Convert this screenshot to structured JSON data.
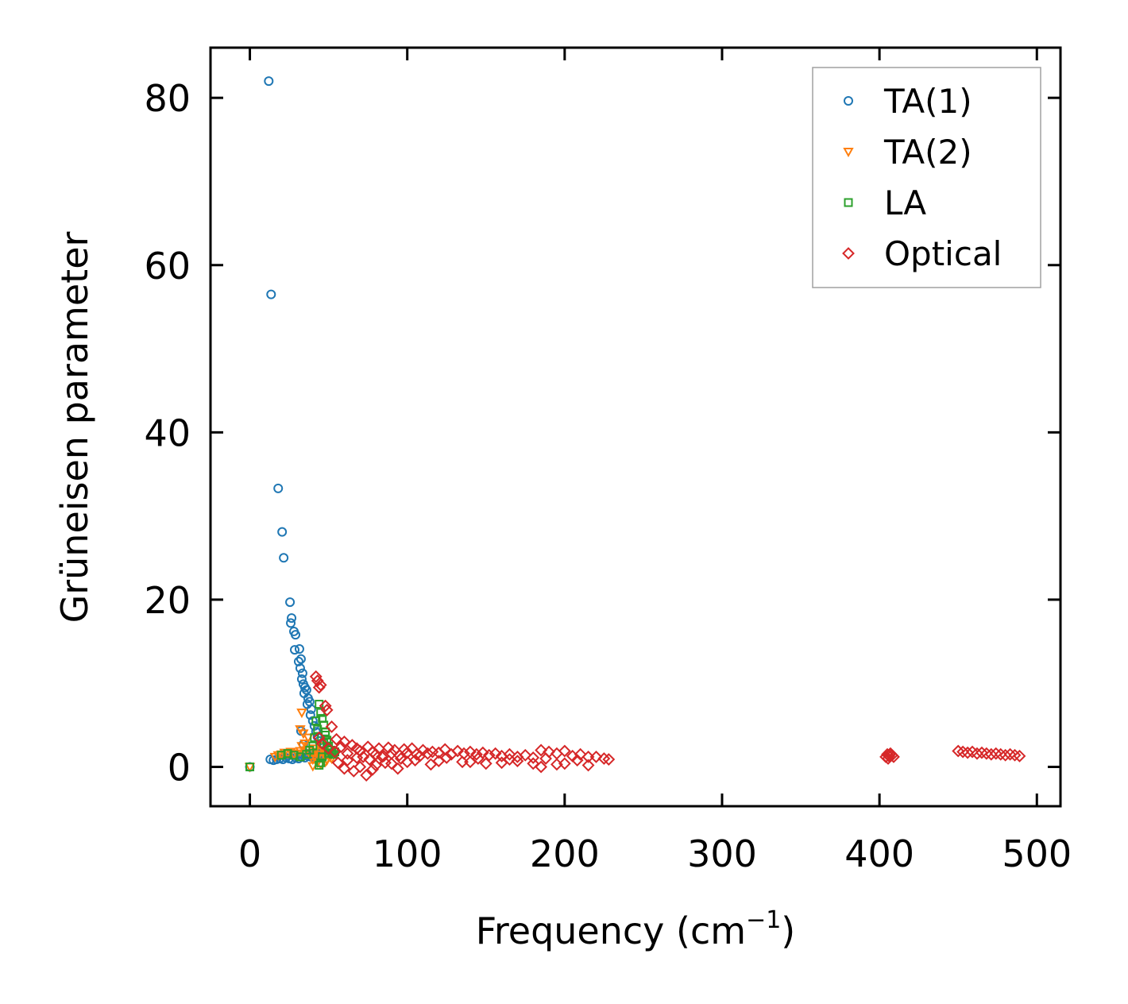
{
  "chart_data": {
    "type": "scatter",
    "title": "",
    "xlabel": "Frequency (cm",
    "xlabel_sup": "−1",
    "xlabel_suffix": ")",
    "ylabel": "Grüneisen parameter",
    "xlim": [
      -25,
      515
    ],
    "ylim": [
      -4.7,
      86
    ],
    "xticks": [
      0,
      100,
      200,
      300,
      400,
      500
    ],
    "yticks": [
      0,
      20,
      40,
      60,
      80
    ],
    "xtick_labels": [
      "0",
      "100",
      "200",
      "300",
      "400",
      "500"
    ],
    "ytick_labels": [
      "0",
      "20",
      "40",
      "60",
      "80"
    ],
    "grid": false,
    "legend_position": "top-right",
    "series": [
      {
        "name": "TA(1)",
        "marker": "circle",
        "color": "#1f77b4",
        "x": [
          12,
          13.5,
          18,
          20.5,
          21.5,
          25.5,
          26.5,
          26,
          28,
          29,
          28.5,
          31.5,
          31,
          32.5,
          32,
          33.5,
          33,
          34,
          35,
          34.5,
          36,
          37,
          36.5,
          38,
          39,
          38.5,
          40,
          41,
          42,
          43,
          44,
          45,
          46,
          32.5,
          34,
          36,
          0,
          13,
          15,
          17,
          19,
          21,
          23,
          25,
          27,
          29,
          31,
          33,
          35,
          37,
          39,
          41,
          43,
          45,
          47
        ],
        "y": [
          82,
          56.5,
          33.3,
          28.1,
          25,
          19.7,
          17.8,
          17.2,
          16.2,
          15.8,
          14,
          14.1,
          12.6,
          12.9,
          11.8,
          11.2,
          10.5,
          9.9,
          9.5,
          8.8,
          9.2,
          8.2,
          7.5,
          7.8,
          6.9,
          6.2,
          5.5,
          4.9,
          4.2,
          3.6,
          3.1,
          2.5,
          1.9,
          4.3,
          2.7,
          1.6,
          0,
          0.9,
          0.8,
          0.9,
          1.0,
          0.9,
          1.1,
          1.0,
          0.9,
          1.1,
          1.0,
          1.2,
          1.1,
          1.3,
          1.2,
          1.4,
          1.5,
          1.6,
          1.7
        ]
      },
      {
        "name": "TA(2)",
        "marker": "triangle-down",
        "color": "#ff7f0e",
        "x": [
          0,
          16,
          18,
          20,
          22,
          24,
          26,
          28,
          30,
          32,
          33,
          34,
          35,
          36,
          37,
          38,
          39,
          40,
          41,
          42,
          43,
          44,
          45,
          46,
          47,
          48,
          49,
          50,
          51,
          52,
          32,
          33,
          40,
          42,
          44,
          46,
          48
        ],
        "y": [
          0,
          1.2,
          1.4,
          1.5,
          1.7,
          1.6,
          1.8,
          1.5,
          1.6,
          1.9,
          6.5,
          4.0,
          2.8,
          2.0,
          3.5,
          1.6,
          1.2,
          0.9,
          2.2,
          1.1,
          0.5,
          1.8,
          0.3,
          2.5,
          1.9,
          1.4,
          0.8,
          1.6,
          1.2,
          1.0,
          4.5,
          2.5,
          0.1,
          2.2,
          1.5,
          1.0,
          0.6
        ]
      },
      {
        "name": "LA",
        "marker": "square",
        "color": "#2ca02c",
        "x": [
          0,
          20,
          24,
          28,
          32,
          36,
          38,
          40,
          41,
          42,
          43,
          44,
          45,
          46,
          47,
          48,
          49,
          50,
          51,
          52,
          53,
          54,
          44,
          45,
          46,
          47,
          48,
          49,
          50
        ],
        "y": [
          0,
          1.4,
          1.6,
          1.4,
          1.2,
          1.5,
          2.0,
          2.5,
          3.5,
          5.5,
          4.5,
          7.5,
          6.5,
          5.8,
          5.0,
          3.8,
          3.2,
          2.5,
          2.0,
          1.7,
          1.5,
          1.8,
          0.2,
          0.5,
          1.2,
          2.8,
          4.2,
          3.0,
          1.6
        ]
      },
      {
        "name": "Optical",
        "marker": "diamond",
        "color": "#d62728",
        "x": [
          42,
          43,
          44,
          45,
          48,
          49,
          52,
          44,
          46,
          50,
          54,
          55,
          58,
          60,
          62,
          65,
          68,
          70,
          72,
          75,
          78,
          80,
          82,
          85,
          88,
          90,
          92,
          95,
          98,
          100,
          103,
          106,
          110,
          113,
          116,
          120,
          124,
          128,
          132,
          136,
          140,
          144,
          148,
          152,
          156,
          160,
          165,
          170,
          175,
          180,
          185,
          190,
          195,
          200,
          205,
          210,
          215,
          220,
          225,
          228,
          60,
          70,
          80,
          90,
          100,
          120,
          140,
          160,
          180,
          200,
          66,
          74,
          78,
          86,
          94,
          105,
          115,
          135,
          150,
          170,
          185,
          195,
          215,
          56,
          62,
          68,
          76,
          84,
          96,
          108,
          125,
          145,
          165,
          188,
          208,
          404,
          405,
          406,
          407,
          408,
          409,
          405.5,
          406.5,
          450,
          453,
          456,
          459,
          462,
          465,
          468,
          471,
          474,
          477,
          480,
          483,
          486,
          489
        ],
        "y": [
          10.8,
          10.3,
          9.5,
          9.8,
          7.3,
          6.8,
          4.8,
          3.5,
          2.8,
          2.2,
          1.8,
          3.3,
          2.4,
          3.0,
          1.6,
          2.6,
          2.2,
          1.9,
          1.2,
          2.4,
          1.8,
          1.5,
          2.2,
          1.3,
          2.3,
          1.6,
          2.0,
          1.4,
          2.1,
          1.7,
          2.2,
          1.5,
          2.0,
          1.6,
          1.8,
          1.7,
          2.1,
          1.5,
          1.9,
          1.6,
          1.8,
          1.5,
          1.7,
          1.4,
          1.6,
          1.3,
          1.5,
          1.2,
          1.4,
          1.1,
          2.0,
          1.8,
          1.6,
          1.9,
          1.3,
          1.5,
          1.2,
          1.2,
          1.0,
          0.9,
          -0.2,
          0.0,
          0.2,
          0.4,
          0.6,
          0.7,
          0.6,
          0.5,
          0.4,
          0.4,
          -0.5,
          -1.0,
          -0.3,
          0.5,
          -0.2,
          0.8,
          0.3,
          0.6,
          0.4,
          0.7,
          0.0,
          0.3,
          0.2,
          0.5,
          0.8,
          1.1,
          0.9,
          1.2,
          1.0,
          1.3,
          1.1,
          1.0,
          0.9,
          1.0,
          0.8,
          1.2,
          1.5,
          1.3,
          1.6,
          1.4,
          1.2,
          1.0,
          1.5,
          1.9,
          1.8,
          1.7,
          1.8,
          1.6,
          1.7,
          1.6,
          1.5,
          1.6,
          1.5,
          1.4,
          1.5,
          1.4,
          1.3
        ]
      }
    ]
  }
}
